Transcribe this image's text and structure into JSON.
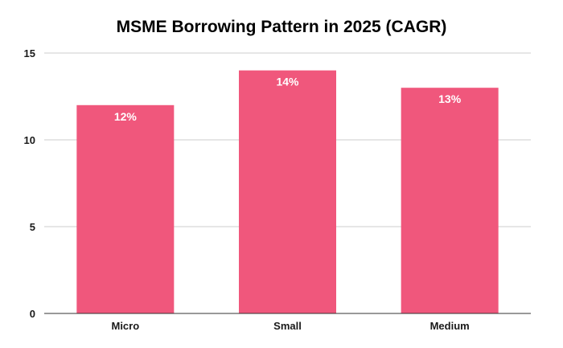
{
  "chart_data": {
    "type": "bar",
    "title": "MSME Borrowing Pattern in 2025 (CAGR)",
    "xlabel": "",
    "ylabel": "",
    "categories": [
      "Micro",
      "Small",
      "Medium"
    ],
    "values": [
      12,
      14,
      13
    ],
    "data_labels": [
      "12%",
      "14%",
      "13%"
    ],
    "ylim": [
      0,
      15
    ],
    "yticks": [
      0,
      5,
      10,
      15
    ],
    "grid": true,
    "legend": "none",
    "colors": {
      "bar": "#f0577c"
    }
  }
}
